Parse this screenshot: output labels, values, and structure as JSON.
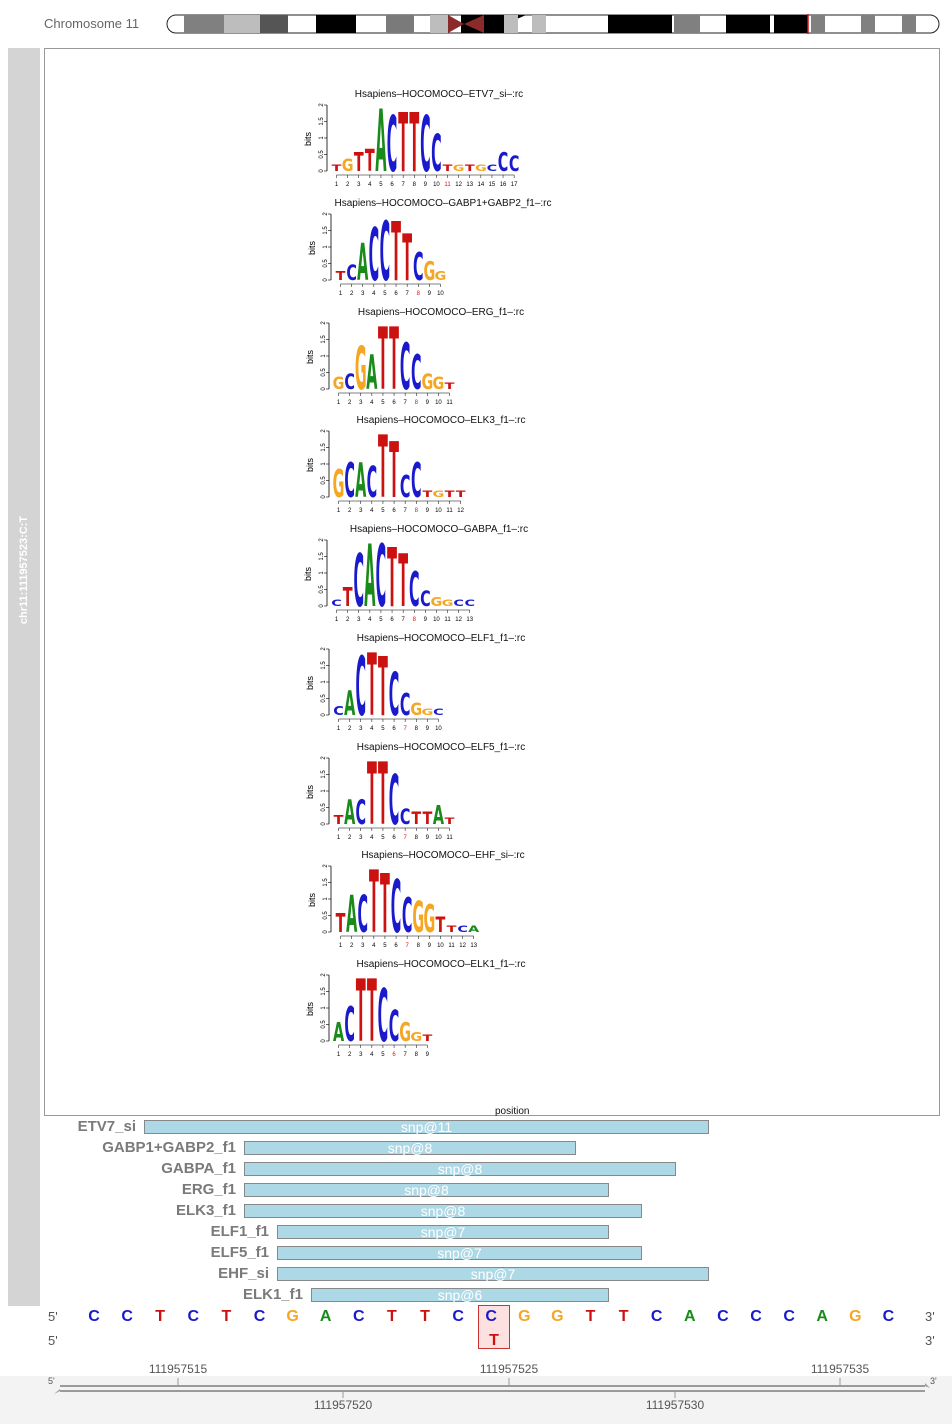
{
  "chromosome": {
    "label": "Chromosome 11"
  },
  "track": {
    "label": "chr11:111957523:C:T"
  },
  "logos": [
    {
      "title": "Hsapiens–HOCOMOCO–ETV7_si–:rc",
      "positions": [
        "1",
        "2",
        "3",
        "4",
        "5",
        "6",
        "7",
        "8",
        "9",
        "10",
        "11",
        "12",
        "13",
        "14",
        "15",
        "16",
        "17"
      ],
      "highlight": "11"
    },
    {
      "title": "Hsapiens–HOCOMOCO–GABP1+GABP2_f1–:rc",
      "positions": [
        "1",
        "2",
        "3",
        "4",
        "5",
        "6",
        "7",
        "8",
        "9",
        "10"
      ],
      "highlight": "8"
    },
    {
      "title": "Hsapiens–HOCOMOCO–ERG_f1–:rc",
      "positions": [
        "1",
        "2",
        "3",
        "4",
        "5",
        "6",
        "7",
        "8",
        "9",
        "10",
        "11"
      ],
      "highlight": "8"
    },
    {
      "title": "Hsapiens–HOCOMOCO–ELK3_f1–:rc",
      "positions": [
        "1",
        "2",
        "3",
        "4",
        "5",
        "6",
        "7",
        "8",
        "9",
        "10",
        "11",
        "12"
      ],
      "highlight": "8"
    },
    {
      "title": "Hsapiens–HOCOMOCO–GABPA_f1–:rc",
      "positions": [
        "1",
        "2",
        "3",
        "4",
        "5",
        "6",
        "7",
        "8",
        "9",
        "10",
        "11",
        "12",
        "13"
      ],
      "highlight": "8"
    },
    {
      "title": "Hsapiens–HOCOMOCO–ELF1_f1–:rc",
      "positions": [
        "1",
        "2",
        "3",
        "4",
        "5",
        "6",
        "7",
        "8",
        "9",
        "10"
      ],
      "highlight": "7"
    },
    {
      "title": "Hsapiens–HOCOMOCO–ELF5_f1–:rc",
      "positions": [
        "1",
        "2",
        "3",
        "4",
        "5",
        "6",
        "7",
        "8",
        "9",
        "10",
        "11"
      ],
      "highlight": "7"
    },
    {
      "title": "Hsapiens–HOCOMOCO–EHF_si–:rc",
      "positions": [
        "1",
        "2",
        "3",
        "4",
        "5",
        "6",
        "7",
        "8",
        "9",
        "10",
        "11",
        "12",
        "13"
      ],
      "highlight": "7"
    },
    {
      "title": "Hsapiens–HOCOMOCO–ELK1_f1–:rc",
      "positions": [
        "1",
        "2",
        "3",
        "4",
        "5",
        "6",
        "7",
        "8",
        "9"
      ],
      "highlight": "6"
    }
  ],
  "logo_axis": {
    "ylabel": "bits",
    "yticks": [
      "0",
      "0.5",
      "1",
      "1.5",
      "2"
    ],
    "xlabel": "position"
  },
  "tfs": [
    {
      "name": "ETV7_si",
      "snp": "snp@11"
    },
    {
      "name": "GABP1+GABP2_f1",
      "snp": "snp@8"
    },
    {
      "name": "GABPA_f1",
      "snp": "snp@8"
    },
    {
      "name": "ERG_f1",
      "snp": "snp@8"
    },
    {
      "name": "ELK3_f1",
      "snp": "snp@8"
    },
    {
      "name": "ELF1_f1",
      "snp": "snp@7"
    },
    {
      "name": "ELF5_f1",
      "snp": "snp@7"
    },
    {
      "name": "EHF_si",
      "snp": "snp@7"
    },
    {
      "name": "ELK1_f1",
      "snp": "snp@6"
    }
  ],
  "sequence": {
    "five_prime": "5'",
    "three_prime": "3'",
    "bases": [
      "C",
      "C",
      "T",
      "C",
      "T",
      "C",
      "G",
      "A",
      "C",
      "T",
      "T",
      "C",
      "C",
      "G",
      "G",
      "T",
      "T",
      "C",
      "A",
      "C",
      "C",
      "C",
      "A",
      "G",
      "C"
    ],
    "alt_base": "T",
    "base_colors": {
      "A": "#1a8a1a",
      "C": "#1a1acc",
      "G": "#f5a623",
      "T": "#cc1111"
    }
  },
  "axis": {
    "top_ticks": [
      "111957515",
      "111957525",
      "111957535"
    ],
    "bottom_ticks": [
      "111957520",
      "111957530"
    ],
    "five_prime": "5'",
    "three_prime": "3'"
  }
}
